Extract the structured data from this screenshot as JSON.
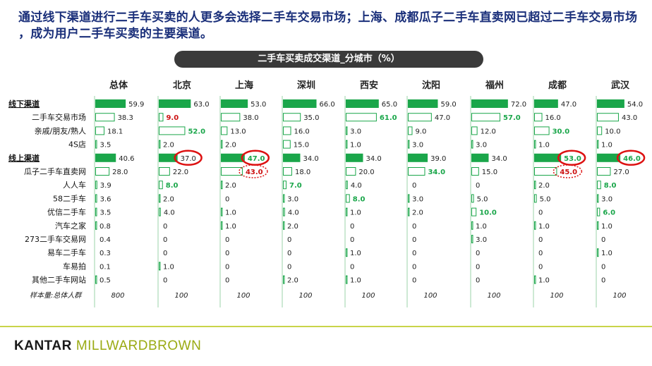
{
  "headline": "通过线下渠道进行二手车买卖的人更多会选择二手车交易市场；上海、成都瓜子二手车直卖网已超过二手车交易市场 ，成为用户二手车买卖的主要渠道。",
  "chart_header": "二手车买卖成交渠道_分城市（%）",
  "logo": {
    "brand": "KANTAR",
    "sub": "MILLWARDBROWN"
  },
  "colors": {
    "bar_fill": "#1aa64a",
    "bar_outline": "#1aa64a",
    "highlight_green": "#1aa64a",
    "highlight_red": "#cc1111",
    "circle": "#dd1111",
    "headline": "#1a2f7a"
  },
  "chart_data": {
    "type": "table",
    "columns": [
      "总体",
      "北京",
      "上海",
      "深圳",
      "西安",
      "沈阳",
      "福州",
      "成都",
      "武汉"
    ],
    "rows": [
      {
        "label": "线下渠道",
        "header": true,
        "values": [
          "59.9",
          "63.0",
          "53.0",
          "66.0",
          "65.0",
          "59.0",
          "72.0",
          "47.0",
          "54.0"
        ]
      },
      {
        "label": "二手车交易市场",
        "values": [
          "38.3",
          "9.0",
          "38.0",
          "35.0",
          "61.0",
          "47.0",
          "57.0",
          "16.0",
          "43.0"
        ]
      },
      {
        "label": "亲戚/朋友/熟人",
        "values": [
          "18.1",
          "52.0",
          "13.0",
          "16.0",
          "3.0",
          "9.0",
          "12.0",
          "30.0",
          "10.0"
        ]
      },
      {
        "label": "4S店",
        "values": [
          "3.5",
          "2.0",
          "2.0",
          "15.0",
          "1.0",
          "3.0",
          "3.0",
          "1.0",
          "1.0"
        ]
      },
      {
        "label": "线上渠道",
        "header": true,
        "values": [
          "40.6",
          "37.0",
          "47.0",
          "34.0",
          "34.0",
          "39.0",
          "34.0",
          "53.0",
          "46.0"
        ]
      },
      {
        "label": "瓜子二手车直卖网",
        "values": [
          "28.0",
          "22.0",
          "43.0",
          "18.0",
          "20.0",
          "34.0",
          "15.0",
          "45.0",
          "27.0"
        ]
      },
      {
        "label": "人人车",
        "values": [
          "3.9",
          "8.0",
          "2.0",
          "7.0",
          "4.0",
          "0",
          "0",
          "2.0",
          "8.0"
        ]
      },
      {
        "label": "58二手车",
        "values": [
          "3.6",
          "2.0",
          "0",
          "3.0",
          "8.0",
          "3.0",
          "5.0",
          "5.0",
          "3.0"
        ]
      },
      {
        "label": "优信二手车",
        "values": [
          "3.5",
          "4.0",
          "1.0",
          "4.0",
          "1.0",
          "2.0",
          "10.0",
          "0",
          "6.0"
        ]
      },
      {
        "label": "汽车之家",
        "values": [
          "0.8",
          "0",
          "1.0",
          "2.0",
          "0",
          "0",
          "1.0",
          "1.0",
          "1.0"
        ]
      },
      {
        "label": "273二手车交易网",
        "values": [
          "0.4",
          "0",
          "0",
          "0",
          "0",
          "0",
          "3.0",
          "0",
          "0"
        ]
      },
      {
        "label": "易车二手车",
        "values": [
          "0.3",
          "0",
          "0",
          "0",
          "1.0",
          "0",
          "0",
          "0",
          "1.0"
        ]
      },
      {
        "label": "车易拍",
        "values": [
          "0.1",
          "1.0",
          "0",
          "0",
          "0",
          "0",
          "0",
          "0",
          "0"
        ]
      },
      {
        "label": "其他二手车网站",
        "values": [
          "0.5",
          "0",
          "0",
          "2.0",
          "1.0",
          "0",
          "0",
          "1.0",
          "0"
        ]
      }
    ],
    "sample_label": "样本量:总体人群",
    "sample_sizes": [
      "800",
      "100",
      "100",
      "100",
      "100",
      "100",
      "100",
      "100",
      "100"
    ],
    "green_highlight": [
      [
        1,
        4
      ],
      [
        1,
        6
      ],
      [
        2,
        1
      ],
      [
        2,
        7
      ],
      [
        5,
        5
      ],
      [
        6,
        1
      ],
      [
        6,
        3
      ],
      [
        6,
        8
      ],
      [
        7,
        4
      ],
      [
        8,
        6
      ],
      [
        8,
        8
      ],
      [
        4,
        2
      ],
      [
        4,
        7
      ],
      [
        4,
        8
      ]
    ],
    "red_highlight": [
      [
        1,
        1
      ],
      [
        5,
        2
      ],
      [
        5,
        7
      ]
    ],
    "circled_solid": [
      [
        4,
        1
      ],
      [
        4,
        2
      ],
      [
        4,
        7
      ],
      [
        4,
        8
      ]
    ],
    "circled_dotted": [
      [
        5,
        2
      ],
      [
        5,
        7
      ]
    ],
    "max_value": 100
  }
}
